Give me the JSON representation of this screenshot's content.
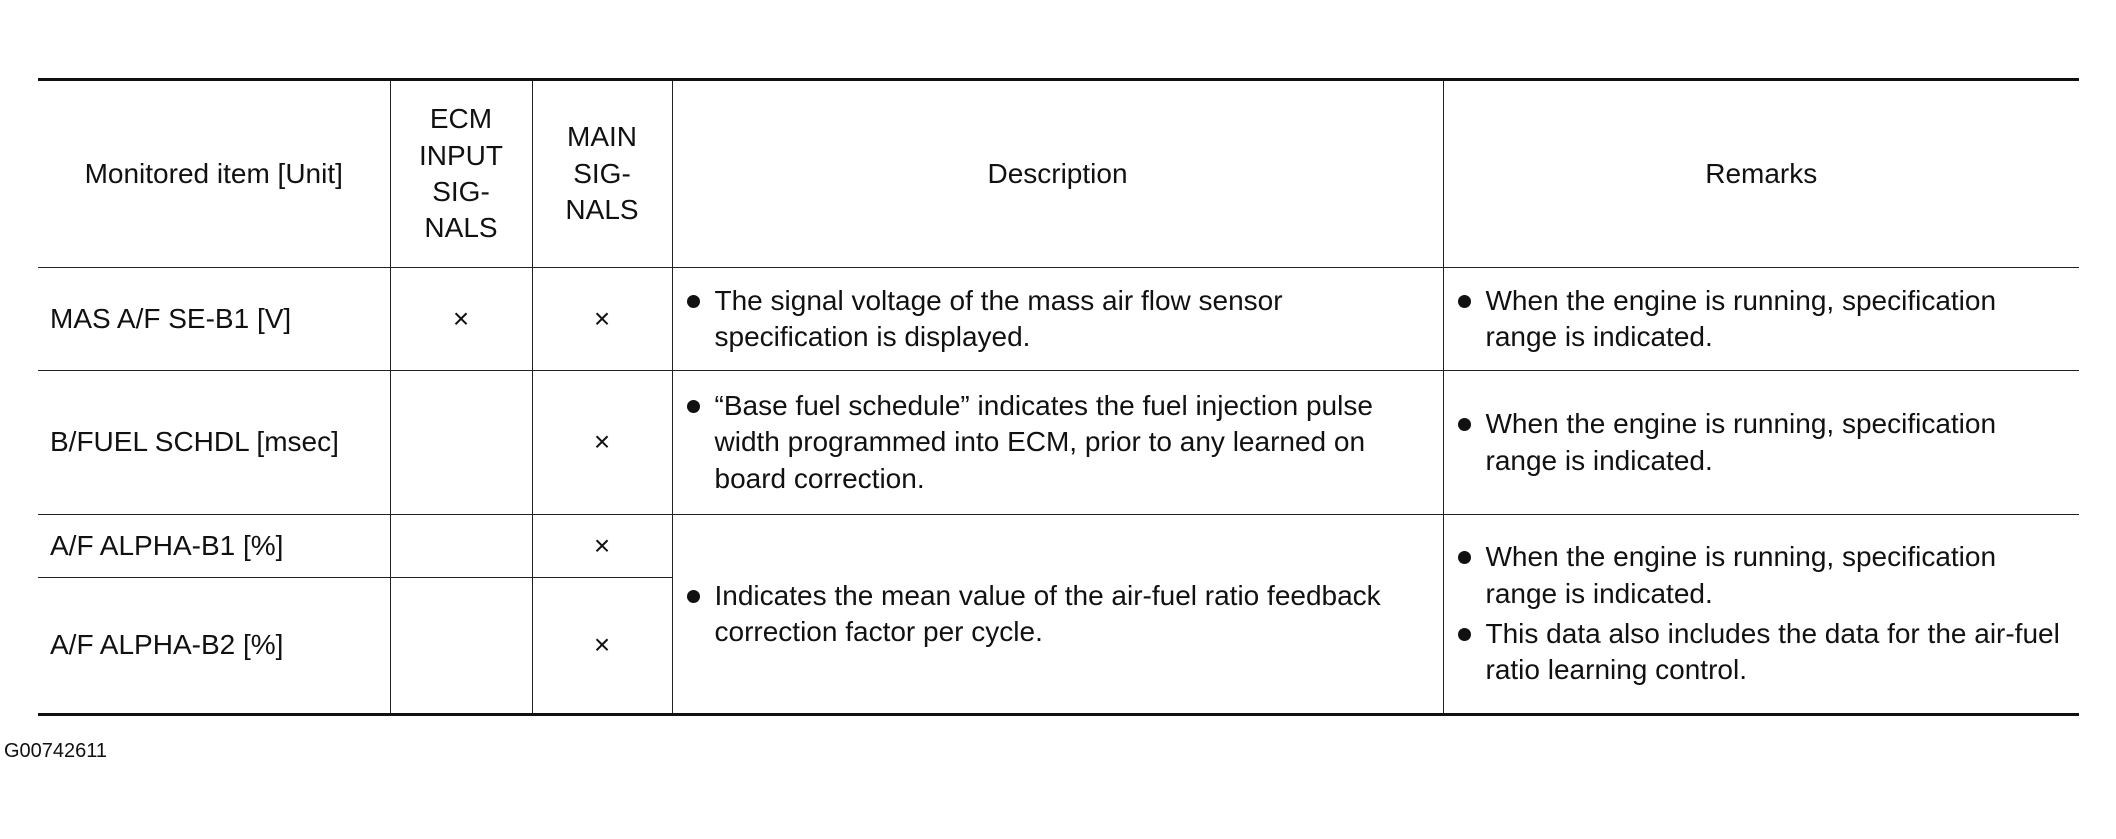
{
  "table": {
    "columns": [
      [
        "Monitored item [Unit]"
      ],
      [
        "ECM",
        "INPUT",
        "SIG-",
        "NALS"
      ],
      [
        "MAIN",
        "SIG-",
        "NALS"
      ],
      [
        "Description"
      ],
      [
        "Remarks"
      ]
    ],
    "rows": [
      {
        "item": "MAS A/F SE-B1 [V]",
        "ecm_input": "×",
        "main": "×",
        "description": [
          "The signal voltage of the mass air flow sensor specification is displayed."
        ],
        "remarks": [
          "When the engine is running, specifi­cation range is indicated."
        ]
      },
      {
        "item": "B/FUEL SCHDL [msec]",
        "main": "×",
        "description": [
          "“Base fuel schedule” indicates the fuel injec­tion pulse width programmed into ECM, prior to any learned on board correction."
        ],
        "remarks": [
          "When the engine is running, specifi­cation range is indicated."
        ]
      },
      {
        "item": "A/F ALPHA-B1 [%]",
        "main": "×",
        "description": [
          "Indicates the mean value of the air-fuel ratio feedback correction factor per cycle."
        ],
        "remarks": [
          "When the engine is running, specifi­cation range is indicated.",
          "This data also includes the data for the air-fuel ratio learning control."
        ]
      },
      {
        "item": "A/F ALPHA-B2 [%]",
        "main": "×"
      }
    ]
  },
  "footer": {
    "code": "G00742611"
  }
}
